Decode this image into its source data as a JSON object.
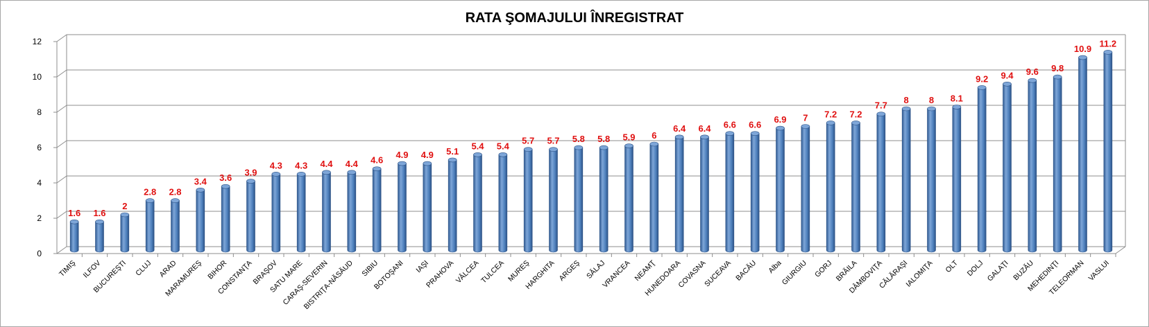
{
  "chart_data": {
    "type": "bar",
    "title": "RATA ŞOMAJULUI ÎNREGISTRAT",
    "xlabel": "",
    "ylabel": "",
    "ylim": [
      0,
      12
    ],
    "yticks": [
      0,
      2,
      4,
      6,
      8,
      10,
      12
    ],
    "grid": true,
    "categories": [
      "TIMIŞ",
      "ILFOV",
      "BUCUREŞTI",
      "CLUJ",
      "ARAD",
      "MARAMUREŞ",
      "BIHOR",
      "CONSTANŢA",
      "BRAŞOV",
      "SATU MARE",
      "CARAŞ-SEVERIN",
      "BISTRIŢA-NĂSĂUD",
      "SIBIU",
      "BOTOŞANI",
      "IAŞI",
      "PRAHOVA",
      "VÂLCEA",
      "TULCEA",
      "MUREŞ",
      "HARGHITA",
      "ARGEŞ",
      "SĂLAJ",
      "VRANCEA",
      "NEAMŢ",
      "HUNEDOARA",
      "COVASNA",
      "SUCEAVA",
      "BACĂU",
      "Alba",
      "GIURGIU",
      "GORJ",
      "BRĂILA",
      "DÂMBOVIŢA",
      "CĂLĂRAŞI",
      "IALOMIŢA",
      "OLT",
      "DOLJ",
      "GALAŢI",
      "BUZĂU",
      "MEHEDINŢI",
      "TELEORMAN",
      "VASLUI"
    ],
    "values": [
      1.6,
      1.6,
      2,
      2.8,
      2.8,
      3.4,
      3.6,
      3.9,
      4.3,
      4.3,
      4.4,
      4.4,
      4.6,
      4.9,
      4.9,
      5.1,
      5.4,
      5.4,
      5.7,
      5.7,
      5.8,
      5.8,
      5.9,
      6,
      6.4,
      6.4,
      6.6,
      6.6,
      6.9,
      7,
      7.2,
      7.2,
      7.7,
      8,
      8,
      8.1,
      9.2,
      9.4,
      9.6,
      9.8,
      10.9,
      11.2
    ],
    "colors": {
      "bar": "#4f81bd",
      "bar_dark": "#2c5286",
      "bar_light": "#7ea6d8",
      "data_label": "#e01010",
      "grid": "#8c8c8c"
    }
  }
}
